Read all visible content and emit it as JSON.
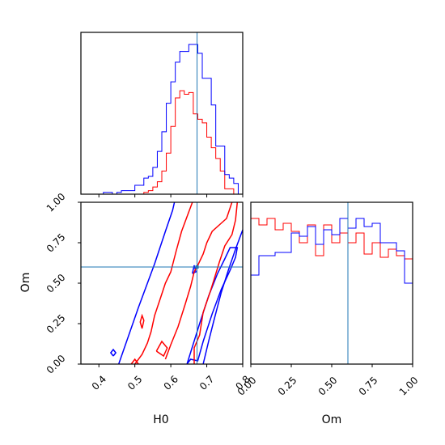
{
  "chart_data": {
    "type": "corner",
    "parameters": [
      "H0",
      "Om"
    ],
    "xlabels": {
      "h0": "H0",
      "om": "Om"
    },
    "ylabel_2d": "Om",
    "ranges": {
      "H0": [
        0.35,
        0.8
      ],
      "Om": [
        0.0,
        1.0
      ]
    },
    "truths": {
      "H0": 0.673,
      "Om": 0.6
    },
    "h0_tick_labels": [
      "0.4",
      "0.5",
      "0.6",
      "0.7",
      "0.8"
    ],
    "om_tick_labels": [
      "0.00",
      "0.25",
      "0.50",
      "0.75",
      "1.00"
    ],
    "colors": {
      "blue": "#0000ff",
      "red": "#ff0000",
      "truth": "#1f77b4",
      "axes": "#000000"
    },
    "hist_h0": {
      "bin_edges": [
        0.35,
        0.3625,
        0.375,
        0.3875,
        0.4,
        0.4125,
        0.425,
        0.4375,
        0.45,
        0.4625,
        0.475,
        0.4875,
        0.5,
        0.5125,
        0.525,
        0.5375,
        0.55,
        0.5625,
        0.575,
        0.5875,
        0.6,
        0.6125,
        0.625,
        0.6375,
        0.65,
        0.6625,
        0.675,
        0.6875,
        0.7,
        0.7125,
        0.725,
        0.7375,
        0.75,
        0.7625,
        0.775,
        0.7875,
        0.8
      ],
      "blue": [
        0,
        0,
        0,
        0,
        0,
        1,
        1,
        0,
        1,
        2,
        2,
        2,
        5,
        5,
        9,
        10,
        15,
        24,
        35,
        51,
        63,
        74,
        80,
        80,
        84,
        84,
        79,
        65,
        65,
        50,
        27,
        27,
        11,
        9,
        6,
        0
      ],
      "red": [
        0,
        0,
        0,
        0,
        0,
        0,
        0,
        0,
        0,
        0,
        0,
        0,
        0,
        0,
        1,
        2,
        4,
        7,
        13,
        23,
        38,
        54,
        58,
        56,
        57,
        45,
        42,
        40,
        32,
        26,
        20,
        13,
        3,
        3,
        0,
        0
      ]
    },
    "hist_om": {
      "bin_edges": [
        0.0,
        0.05,
        0.1,
        0.15,
        0.2,
        0.25,
        0.3,
        0.35,
        0.4,
        0.45,
        0.5,
        0.55,
        0.6,
        0.65,
        0.7,
        0.75,
        0.8,
        0.85,
        0.9,
        0.95,
        1.0
      ],
      "blue": [
        0.55,
        0.67,
        0.67,
        0.69,
        0.69,
        0.81,
        0.79,
        0.85,
        0.74,
        0.83,
        0.8,
        0.9,
        0.84,
        0.9,
        0.85,
        0.87,
        0.75,
        0.75,
        0.7,
        0.5
      ],
      "red": [
        0.9,
        0.86,
        0.9,
        0.83,
        0.87,
        0.82,
        0.75,
        0.86,
        0.67,
        0.86,
        0.75,
        0.81,
        0.75,
        0.81,
        0.68,
        0.75,
        0.66,
        0.71,
        0.67,
        0.65
      ]
    },
    "contours": {
      "blue": [
        [
          [
            0.455,
            0.0
          ],
          [
            0.51,
            0.35
          ],
          [
            0.555,
            0.62
          ],
          [
            0.585,
            0.82
          ],
          [
            0.605,
            0.95
          ],
          [
            0.61,
            1.0
          ]
        ],
        [
          [
            0.8,
            0.83
          ],
          [
            0.78,
            0.71
          ],
          [
            0.76,
            0.58
          ],
          [
            0.74,
            0.44
          ],
          [
            0.72,
            0.27
          ],
          [
            0.705,
            0.14
          ],
          [
            0.69,
            0.0
          ]
        ],
        [
          [
            0.645,
            0.0
          ],
          [
            0.68,
            0.25
          ],
          [
            0.705,
            0.42
          ],
          [
            0.73,
            0.56
          ],
          [
            0.75,
            0.65
          ],
          [
            0.765,
            0.72
          ],
          [
            0.785,
            0.72
          ],
          [
            0.78,
            0.66
          ],
          [
            0.765,
            0.58
          ],
          [
            0.74,
            0.46
          ],
          [
            0.715,
            0.31
          ],
          [
            0.69,
            0.14
          ],
          [
            0.675,
            0.02
          ],
          [
            0.655,
            0.03
          ],
          [
            0.645,
            0.0
          ]
        ],
        [
          [
            0.44,
            0.05
          ],
          [
            0.447,
            0.07
          ],
          [
            0.44,
            0.09
          ],
          [
            0.433,
            0.07
          ],
          [
            0.44,
            0.05
          ]
        ],
        [
          [
            0.66,
            0.56
          ],
          [
            0.665,
            0.61
          ],
          [
            0.67,
            0.57
          ],
          [
            0.66,
            0.56
          ]
        ]
      ],
      "red": [
        [
          [
            0.5,
            0.0
          ],
          [
            0.52,
            0.06
          ],
          [
            0.535,
            0.13
          ],
          [
            0.545,
            0.2
          ],
          [
            0.555,
            0.3
          ],
          [
            0.57,
            0.4
          ],
          [
            0.585,
            0.5
          ],
          [
            0.6,
            0.57
          ],
          [
            0.615,
            0.7
          ],
          [
            0.63,
            0.82
          ],
          [
            0.65,
            0.94
          ],
          [
            0.66,
            1.0
          ]
        ],
        [
          [
            0.585,
            0.03
          ],
          [
            0.6,
            0.12
          ],
          [
            0.62,
            0.23
          ],
          [
            0.64,
            0.37
          ],
          [
            0.655,
            0.48
          ],
          [
            0.665,
            0.57
          ],
          [
            0.675,
            0.61
          ],
          [
            0.69,
            0.68
          ],
          [
            0.7,
            0.75
          ],
          [
            0.715,
            0.82
          ],
          [
            0.74,
            0.87
          ],
          [
            0.755,
            0.9
          ],
          [
            0.77,
            1.0
          ]
        ],
        [
          [
            0.785,
            1.0
          ],
          [
            0.78,
            0.89
          ],
          [
            0.77,
            0.8
          ],
          [
            0.75,
            0.73
          ],
          [
            0.735,
            0.63
          ],
          [
            0.72,
            0.52
          ],
          [
            0.71,
            0.45
          ],
          [
            0.69,
            0.32
          ],
          [
            0.68,
            0.18
          ],
          [
            0.665,
            0.1
          ],
          [
            0.665,
            0.0
          ]
        ],
        [
          [
            0.52,
            0.22
          ],
          [
            0.525,
            0.27
          ],
          [
            0.52,
            0.3
          ],
          [
            0.515,
            0.26
          ],
          [
            0.52,
            0.22
          ]
        ],
        [
          [
            0.49,
            0.0
          ],
          [
            0.5,
            0.03
          ],
          [
            0.51,
            0.0
          ]
        ],
        [
          [
            0.56,
            0.08
          ],
          [
            0.575,
            0.14
          ],
          [
            0.59,
            0.1
          ],
          [
            0.58,
            0.05
          ],
          [
            0.56,
            0.08
          ]
        ]
      ]
    }
  }
}
